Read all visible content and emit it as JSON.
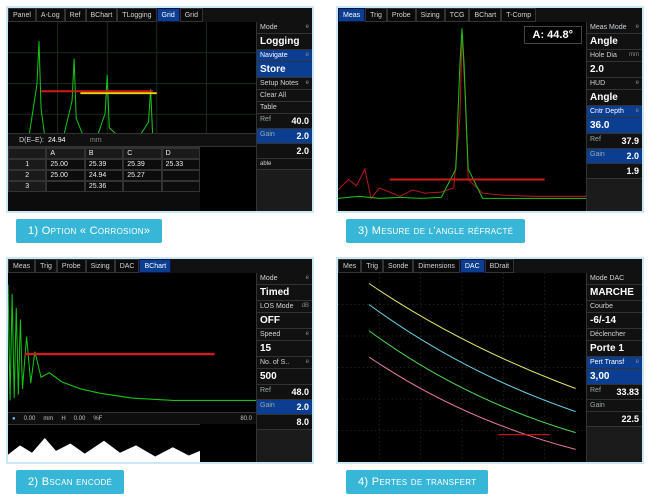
{
  "colors": {
    "caption_bg": "#37b6d8",
    "screen_border": "#c9e8f2",
    "waveform": "#17c217",
    "waveform_dim": "#0e7f0e",
    "ref_line": "#d11a1a",
    "gate_yellow": "#f5d400",
    "tab_sel_bg": "#0b3d91",
    "sidebar_blue": "#0b3d91",
    "dac_green": "#4fd24f",
    "dac_yellow": "#e4e46a",
    "dac_cyan": "#6ad0e4",
    "dac_pink": "#e47aa6"
  },
  "p1": {
    "caption": "1) Option « Corrosion»",
    "tabs": [
      "Panel",
      "A-Log",
      "Ref",
      "BChart",
      "TLogging",
      "Grid",
      "Grid"
    ],
    "tab_selected": 5,
    "readout_label": "D(E–E):",
    "readout_value": "24.94",
    "readout_unit": "mm",
    "xmax": "100",
    "table": {
      "cols": [
        "A",
        "B",
        "C",
        "D"
      ],
      "rows": [
        [
          "25.00",
          "25.39",
          "25.39",
          "25.33"
        ],
        [
          "25.00",
          "24.94",
          "25.27",
          ""
        ],
        [
          "",
          "25.36",
          "",
          ""
        ]
      ]
    },
    "side": [
      {
        "label": "Mode",
        "sub": "e"
      },
      {
        "label": "Logging",
        "big": true
      },
      {
        "label": "Navigate",
        "sub": "e",
        "blue": true
      },
      {
        "label": "Store",
        "big": true,
        "blue": true
      },
      {
        "label": "Setup Notes",
        "sub": "e"
      },
      {
        "label": "Clear All"
      },
      {
        "label": "Table"
      },
      {
        "label": "Ref",
        "value": "40.0",
        "rt": true
      },
      {
        "label": "Gain",
        "value": "2.0",
        "blue": true,
        "rt": true
      },
      {
        "label": "",
        "value": "2.0",
        "rt": true
      },
      {
        "label": "able",
        "tiny": true
      }
    ]
  },
  "p2": {
    "caption": "2) Bscan encodé",
    "tabs": [
      "Meas",
      "Trig",
      "Probe",
      "Sizing",
      "DAC",
      "BChart"
    ],
    "tab_selected": 5,
    "axis_bottom": [
      "0.00",
      "mm",
      "H",
      "0.00",
      "%F"
    ],
    "xend": "80.0",
    "side": [
      {
        "label": "Mode",
        "sub": "e"
      },
      {
        "label": "Timed",
        "big": true
      },
      {
        "label": "LOS Mode",
        "sub": "dB"
      },
      {
        "label": "OFF",
        "big": true
      },
      {
        "label": "Speed",
        "sub": "e"
      },
      {
        "label": "15",
        "big": true
      },
      {
        "label": "No. of S..",
        "sub": "e"
      },
      {
        "label": "500",
        "big": true
      },
      {
        "label": "Ref",
        "value": "48.0",
        "rt": true
      },
      {
        "label": "Gain",
        "value": "2.0",
        "blue": true,
        "rt": true
      },
      {
        "label": "",
        "value": "8.0",
        "rt": true
      }
    ]
  },
  "p3": {
    "caption": "3) Mesure de l'angle réfracté",
    "tabs": [
      "Meas",
      "Trig",
      "Probe",
      "Sizing",
      "TCG",
      "BChart",
      "T-Comp"
    ],
    "tab_selected": 0,
    "angle_readout": "A: 44.8°",
    "side": [
      {
        "label": "Meas Mode",
        "sub": "e"
      },
      {
        "label": "Angle",
        "big": true
      },
      {
        "label": "Hole Dia",
        "sub": "mm"
      },
      {
        "label": "2.0",
        "big": true
      },
      {
        "label": "HUD",
        "sub": "e"
      },
      {
        "label": "Angle",
        "big": true
      },
      {
        "label": "Cntr Depth",
        "sub": "e",
        "blue": true
      },
      {
        "label": "36.0",
        "big": true,
        "blue": true
      },
      {
        "label": "Ref",
        "value": "37.9",
        "rt": true
      },
      {
        "label": "Gain",
        "value": "2.0",
        "blue": true,
        "rt": true
      },
      {
        "label": "",
        "value": "1.9",
        "rt": true
      }
    ]
  },
  "p4": {
    "caption": "4) Pertes de transfert",
    "tabs": [
      "Mes",
      "Trig",
      "Sonde",
      "Dimensions",
      "DAC",
      "BDrait"
    ],
    "tab_selected": 4,
    "side": [
      {
        "label": "Mode DAC"
      },
      {
        "label": "MARCHE",
        "big": true
      },
      {
        "label": "Courbe"
      },
      {
        "label": "-6/-14",
        "big": true
      },
      {
        "label": "Déclencher"
      },
      {
        "label": "Porte 1",
        "big": true
      },
      {
        "label": "Pert Transf",
        "blue": true,
        "sub": "e"
      },
      {
        "label": "3,00",
        "big": true,
        "blue": true
      },
      {
        "label": "Ref",
        "value": "33.83",
        "rt": true
      },
      {
        "label": "Gain",
        "value": "",
        "rt": true
      },
      {
        "label": "",
        "value": "22.5",
        "rt": true
      }
    ]
  }
}
